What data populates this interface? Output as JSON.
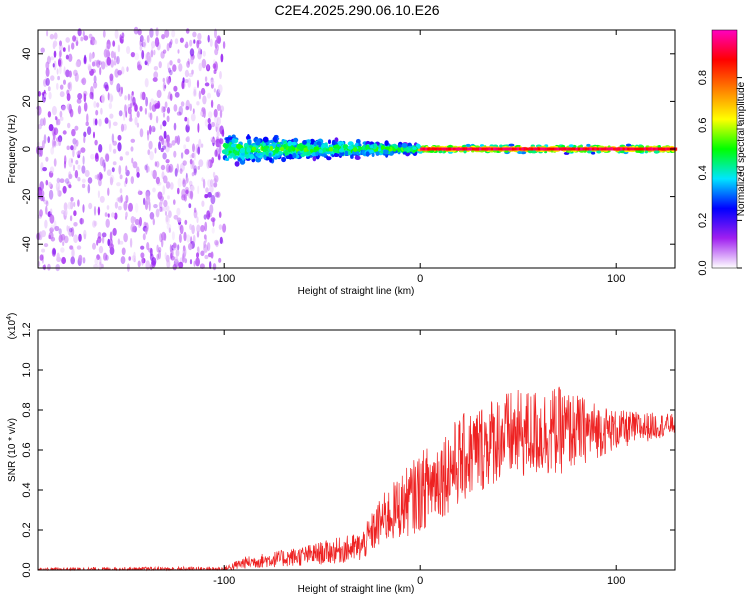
{
  "title": "C2E4.2025.290.06.10.E26",
  "chart_data": [
    {
      "type": "heatmap",
      "name": "spectrogram",
      "xlabel": "Height of straight line (km)",
      "ylabel": "Frequency (Hz)",
      "xlim": [
        -195,
        130
      ],
      "ylim": [
        -50,
        50
      ],
      "xticks": [
        -100,
        0,
        100
      ],
      "yticks": [
        -40,
        -20,
        0,
        20,
        40
      ],
      "colorbar": {
        "label": "Normalized spectral amplitude",
        "range": [
          0,
          1
        ],
        "ticks": [
          0.0,
          0.2,
          0.4,
          0.6,
          0.8
        ],
        "colormap": [
          "#ffffff",
          "#a020f0",
          "#0000ff",
          "#00e5ff",
          "#00ff00",
          "#ffff00",
          "#ff8000",
          "#ff0000",
          "#ff00c0"
        ]
      },
      "regions": [
        {
          "x": [
            -195,
            -100
          ],
          "freq_spread": 50,
          "amplitude": 0.1,
          "description": "noise"
        },
        {
          "x": [
            -100,
            0
          ],
          "freq_spread": 8,
          "amplitude": 0.35
        },
        {
          "x": [
            0,
            130
          ],
          "freq_spread": 2,
          "amplitude": 0.85
        }
      ]
    },
    {
      "type": "line",
      "name": "snr",
      "xlabel": "Height of straight line (km)",
      "ylabel": "SNR (10 * v/v)",
      "multiplier": "(x10",
      "multiplier_exp": "4",
      "multiplier_close": ")",
      "xlim": [
        -195,
        130
      ],
      "ylim": [
        0,
        1.2
      ],
      "xticks": [
        -100,
        0,
        100
      ],
      "yticks": [
        0.0,
        0.2,
        0.4,
        0.6,
        0.8,
        1.0,
        1.2
      ],
      "color": "#ee2222",
      "envelope": [
        {
          "x": -195,
          "y": 0.0,
          "amp": 0.02
        },
        {
          "x": -100,
          "y": 0.0,
          "amp": 0.03
        },
        {
          "x": -90,
          "y": 0.03,
          "amp": 0.06
        },
        {
          "x": -60,
          "y": 0.06,
          "amp": 0.1
        },
        {
          "x": -30,
          "y": 0.1,
          "amp": 0.15
        },
        {
          "x": -20,
          "y": 0.22,
          "amp": 0.25
        },
        {
          "x": 0,
          "y": 0.35,
          "amp": 0.4
        },
        {
          "x": 20,
          "y": 0.5,
          "amp": 0.45
        },
        {
          "x": 40,
          "y": 0.62,
          "amp": 0.45
        },
        {
          "x": 70,
          "y": 0.65,
          "amp": 0.45
        },
        {
          "x": 100,
          "y": 0.68,
          "amp": 0.2
        },
        {
          "x": 130,
          "y": 0.72,
          "amp": 0.1
        }
      ]
    }
  ]
}
